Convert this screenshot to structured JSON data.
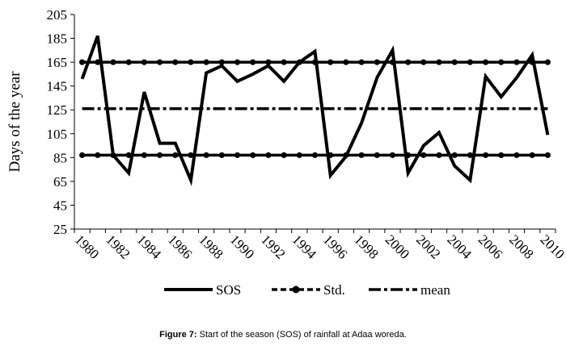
{
  "chart_data": {
    "type": "line",
    "title": "",
    "xlabel": "",
    "ylabel": "Days of the year",
    "ylim": [
      25,
      205
    ],
    "yticks": [
      25,
      45,
      65,
      85,
      105,
      125,
      145,
      165,
      185,
      205
    ],
    "xlim": [
      1979.5,
      2010.5
    ],
    "xtick_labels": [
      "1980",
      "1982",
      "1984",
      "1986",
      "1988",
      "1990",
      "1992",
      "1994",
      "1996",
      "1998",
      "2000",
      "2002",
      "2004",
      "2006",
      "2008",
      "2010"
    ],
    "grid": false,
    "legend_position": "bottom",
    "x": [
      1980,
      1981,
      1982,
      1983,
      1984,
      1985,
      1986,
      1987,
      1988,
      1989,
      1990,
      1991,
      1992,
      1993,
      1994,
      1995,
      1996,
      1997,
      1998,
      1999,
      2000,
      2001,
      2002,
      2003,
      2004,
      2005,
      2006,
      2007,
      2008,
      2009,
      2010
    ],
    "series": [
      {
        "name": "SOS",
        "style": "solid",
        "color": "#000000",
        "values": [
          151,
          187,
          87,
          72,
          140,
          97,
          97,
          66,
          156,
          162,
          149,
          155,
          162,
          149,
          165,
          174,
          70,
          86,
          114,
          152,
          175,
          72,
          95,
          106,
          78,
          66,
          153,
          136,
          152,
          171,
          104
        ]
      },
      {
        "name": "Std.",
        "style": "dots",
        "color": "#000000",
        "values": [
          165,
          165,
          165,
          165,
          165,
          165,
          165,
          165,
          165,
          165,
          165,
          165,
          165,
          165,
          165,
          165,
          165,
          165,
          165,
          165,
          165,
          165,
          165,
          165,
          165,
          165,
          165,
          165,
          165,
          165,
          165
        ]
      },
      {
        "name": "Std.",
        "style": "dots",
        "color": "#000000",
        "values": [
          87,
          87,
          87,
          87,
          87,
          87,
          87,
          87,
          87,
          87,
          87,
          87,
          87,
          87,
          87,
          87,
          87,
          87,
          87,
          87,
          87,
          87,
          87,
          87,
          87,
          87,
          87,
          87,
          87,
          87,
          87
        ]
      },
      {
        "name": "mean",
        "style": "dash-dot",
        "color": "#000000",
        "values": [
          126,
          126,
          126,
          126,
          126,
          126,
          126,
          126,
          126,
          126,
          126,
          126,
          126,
          126,
          126,
          126,
          126,
          126,
          126,
          126,
          126,
          126,
          126,
          126,
          126,
          126,
          126,
          126,
          126,
          126,
          126
        ]
      }
    ],
    "legend": [
      {
        "label": "SOS",
        "style": "solid"
      },
      {
        "label": "Std.",
        "style": "dots"
      },
      {
        "label": "mean",
        "style": "dash-dot"
      }
    ]
  },
  "caption": {
    "label": "Figure 7:",
    "text": " Start of the season (SOS) of rainfall at Adaa woreda."
  }
}
